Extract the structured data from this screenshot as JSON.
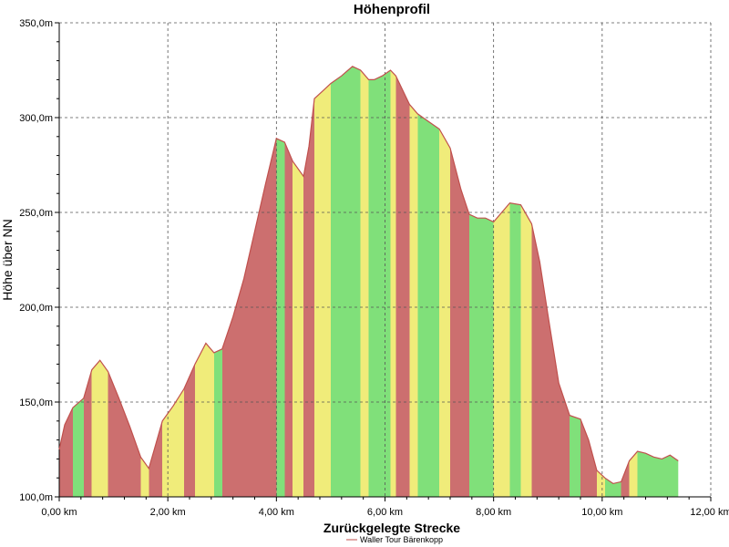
{
  "chart_data": {
    "type": "area",
    "title": "Höhenprofil",
    "xlabel": "Zurückgelegte Strecke",
    "ylabel": "Höhe über NN",
    "xlim": [
      0,
      12
    ],
    "ylim": [
      100,
      350
    ],
    "x_ticks": [
      0,
      2,
      4,
      6,
      8,
      10,
      12
    ],
    "x_tick_labels": [
      "0,00 km",
      "2,00 km",
      "4,00 km",
      "6,00 km",
      "8,00 km",
      "10,00 km",
      "12,00 km"
    ],
    "y_ticks": [
      100,
      150,
      200,
      250,
      300,
      350
    ],
    "y_tick_labels": [
      "100,0m",
      "150,0m",
      "200,0m",
      "250,0m",
      "300,0m",
      "350,0m"
    ],
    "grid": true,
    "legend_position": "bottom",
    "line_color": "#c0504d",
    "gradient_colors": {
      "steep": "#cc6f6f",
      "medium": "#f0ec7a",
      "flat": "#80e07a"
    },
    "series": [
      {
        "name": "Waller Tour Bärenkopp",
        "x": [
          0,
          0.1,
          0.25,
          0.45,
          0.6,
          0.75,
          0.9,
          1.1,
          1.3,
          1.5,
          1.65,
          1.75,
          1.9,
          2.1,
          2.3,
          2.5,
          2.7,
          2.85,
          3.0,
          3.2,
          3.4,
          3.6,
          3.8,
          4.0,
          4.15,
          4.3,
          4.5,
          4.6,
          4.7,
          4.85,
          5.0,
          5.2,
          5.4,
          5.55,
          5.7,
          5.8,
          5.95,
          6.1,
          6.2,
          6.3,
          6.45,
          6.6,
          6.8,
          7.0,
          7.2,
          7.4,
          7.55,
          7.7,
          7.85,
          8.0,
          8.15,
          8.3,
          8.5,
          8.7,
          8.85,
          9.0,
          9.2,
          9.4,
          9.6,
          9.75,
          9.9,
          10.05,
          10.2,
          10.35,
          10.5,
          10.65,
          10.8,
          10.95,
          11.1,
          11.25,
          11.4
        ],
        "y": [
          125,
          138,
          147,
          152,
          167,
          172,
          166,
          152,
          137,
          121,
          115,
          125,
          140,
          148,
          157,
          170,
          181,
          176,
          178,
          195,
          215,
          240,
          265,
          289,
          287,
          277,
          269,
          285,
          310,
          314,
          318,
          322,
          327,
          325,
          320,
          320,
          322,
          325,
          322,
          316,
          307,
          302,
          298,
          294,
          284,
          262,
          249,
          247,
          247,
          245,
          250,
          255,
          254,
          244,
          224,
          196,
          160,
          143,
          141,
          130,
          114,
          110,
          107,
          108,
          119,
          124,
          123,
          121,
          120,
          122,
          119
        ]
      }
    ]
  }
}
